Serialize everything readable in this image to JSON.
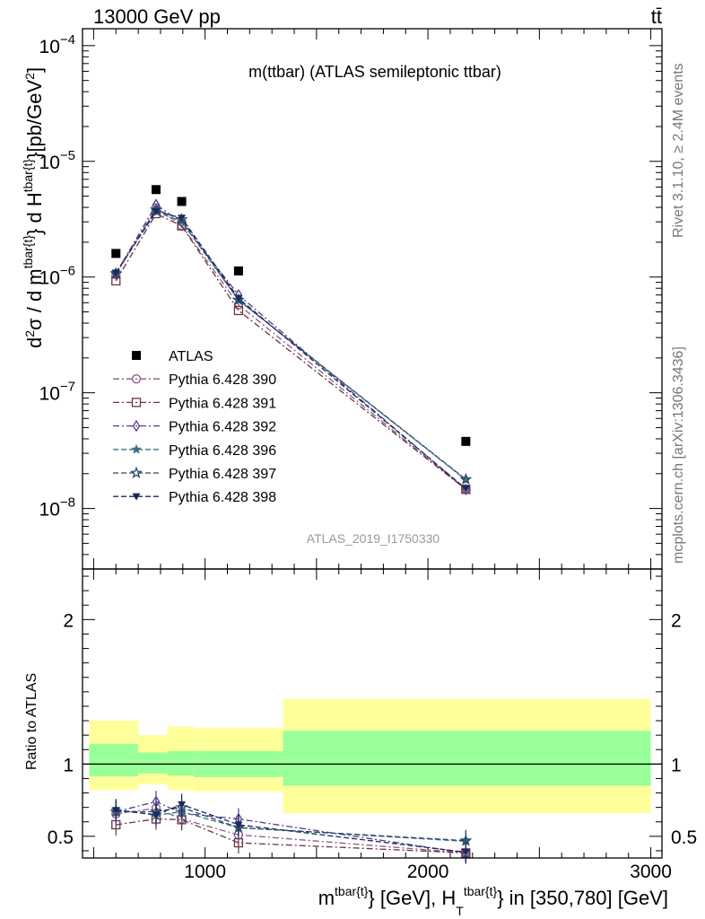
{
  "header": {
    "left": "13000 GeV pp",
    "right": "tt̄"
  },
  "side": {
    "rivet": "Rivet 3.1.10, ≥ 2.4M events",
    "mcplots": "mcplots.cern.ch [arXiv:1306.3436]"
  },
  "chart_data": {
    "type": "scatter",
    "title": "m(ttbar) (ATLAS semileptonic ttbar)",
    "watermark": "ATLAS_2019_I1750330",
    "xlabel": "m^{tbar{t}} [GeV], H_T^{tbar{t}} in [350,780] [GeV]",
    "xlim": [
      450,
      3050
    ],
    "x_ticks": [
      "1000",
      "2000",
      "3000"
    ],
    "main": {
      "ylabel": "d²σ / d m^{tbar{t}} d H_T^{tbar{t}} [pb/GeV²]",
      "yscale": "log",
      "ylim": [
        3e-09,
        0.00014
      ],
      "y_ticks": [
        "10^-8",
        "10^-7",
        "10^-6",
        "10^-5",
        "10^-4"
      ]
    },
    "ratio": {
      "ylabel": "Ratio to ATLAS",
      "ylim": [
        0.35,
        2.35
      ],
      "y_ticks": [
        "0.5",
        "1",
        "2"
      ]
    },
    "x": [
      600,
      780,
      895,
      1150,
      2170
    ],
    "bin_edges": [
      480,
      700,
      830,
      950,
      1350,
      3000
    ],
    "data": {
      "name": "ATLAS",
      "values": [
        1.6e-06,
        5.7e-06,
        4.5e-06,
        1.13e-06,
        3.8e-08
      ],
      "band_inner": [
        [
          0.915,
          1.14
        ],
        [
          0.935,
          1.08
        ],
        [
          0.92,
          1.09
        ],
        [
          0.91,
          1.09
        ],
        [
          0.85,
          1.23
        ]
      ],
      "band_outer": [
        [
          0.82,
          1.3
        ],
        [
          0.86,
          1.2
        ],
        [
          0.82,
          1.26
        ],
        [
          0.81,
          1.25
        ],
        [
          0.66,
          1.45
        ]
      ]
    },
    "series": [
      {
        "name": "Pythia 6.428 390",
        "color": "#8a5a8a",
        "marker": "circle-open",
        "dash": "7,3,2,3",
        "ratio": [
          0.655,
          0.695,
          0.62,
          0.51,
          0.385
        ]
      },
      {
        "name": "Pythia 6.428 391",
        "color": "#6b3545",
        "marker": "square-open",
        "dash": "7,3,2,3",
        "ratio": [
          0.58,
          0.62,
          0.615,
          0.455,
          0.385
        ]
      },
      {
        "name": "Pythia 6.428 392",
        "color": "#5a3a8a",
        "marker": "diamond-open",
        "dash": "7,3,2,3",
        "ratio": [
          0.67,
          0.74,
          0.66,
          0.62,
          0.385
        ]
      },
      {
        "name": "Pythia 6.428 396",
        "color": "#3a7080",
        "marker": "star-filled",
        "dash": "6,3",
        "ratio": [
          0.685,
          0.645,
          0.67,
          0.56,
          0.465
        ]
      },
      {
        "name": "Pythia 6.428 397",
        "color": "#2e4a6a",
        "marker": "star-open",
        "dash": "6,3",
        "ratio": [
          0.67,
          0.67,
          0.7,
          0.56,
          0.47
        ]
      },
      {
        "name": "Pythia 6.428 398",
        "color": "#1a2a5a",
        "marker": "triangle-down",
        "dash": "6,3",
        "ratio": [
          0.68,
          0.65,
          0.72,
          0.58,
          0.39
        ]
      }
    ]
  }
}
